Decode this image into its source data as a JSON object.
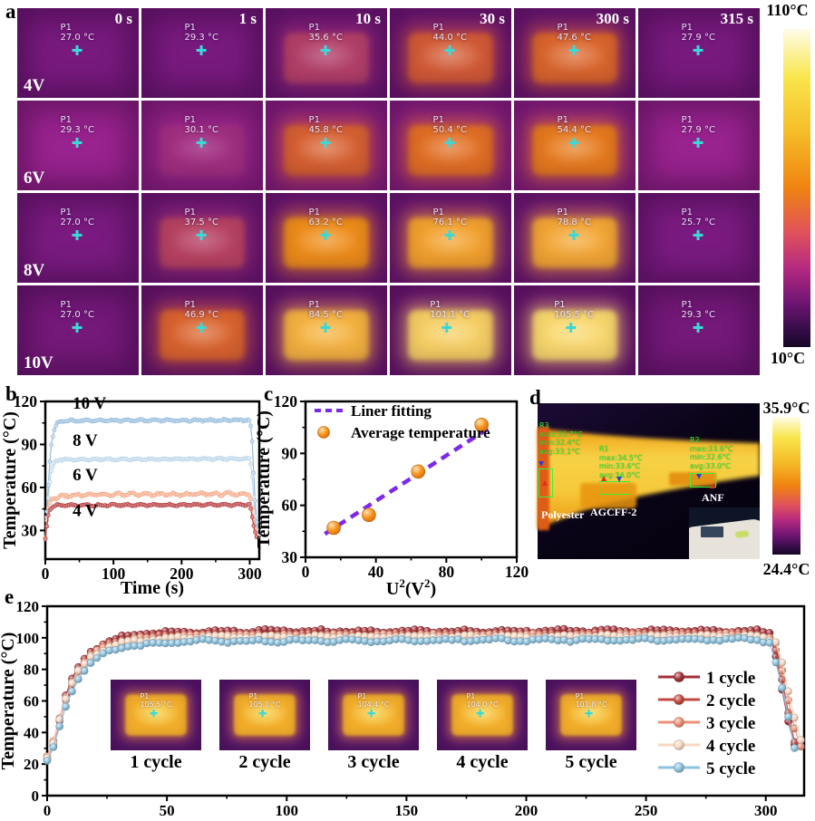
{
  "colors": {
    "crosshair": "#3bd8d6",
    "annotation_green": "#38f23c",
    "thermal_gradient": [
      "#fefce8 0%",
      "#f9e64d 15%",
      "#f5bb28 33%",
      "#ef8311 50%",
      "#e0525b 64%",
      "#b62a80 75%",
      "#6f1573 86%",
      "#2c0b40 96%",
      "#170724 100%"
    ],
    "cell_row_bg": [
      "#78197e",
      "#98228e",
      "#7a1a80",
      "#741879"
    ],
    "fit_purple": "#7d2ae8",
    "sphere_orange": "#f79421"
  },
  "panel_a": {
    "label": "a",
    "time_labels": [
      "0 s",
      "1 s",
      "10 s",
      "30 s",
      "300 s",
      "315 s"
    ],
    "rows": [
      {
        "voltage": "4V",
        "temps": [
          27.0,
          29.3,
          35.6,
          44.0,
          47.6,
          27.9
        ]
      },
      {
        "voltage": "6V",
        "temps": [
          29.3,
          30.1,
          45.8,
          50.4,
          54.4,
          27.9
        ]
      },
      {
        "voltage": "8V",
        "temps": [
          27.0,
          37.5,
          63.2,
          76.1,
          78.8,
          25.7
        ]
      },
      {
        "voltage": "10V",
        "temps": [
          27.0,
          46.9,
          84.5,
          101.1,
          105.5,
          29.3
        ]
      }
    ],
    "point_label": "P1",
    "temp_suffix": " °C",
    "colorbar_top": "110°C",
    "colorbar_bottom": "10°C"
  },
  "panel_d": {
    "label": "d",
    "regions": [
      {
        "id": "R3",
        "lines": [
          "max:33.7°C",
          "min:32.4°C",
          "avg:33.1°C"
        ]
      },
      {
        "id": "R1",
        "lines": [
          "max:34.5°C",
          "min:33.6°C",
          "avg:34.0°C"
        ]
      },
      {
        "id": "R2",
        "lines": [
          "max:33.6°C",
          "min:32.6°C",
          "avg:33.0°C"
        ]
      }
    ],
    "material_labels": [
      "Polyester",
      "AGCFF-2",
      "ANF"
    ],
    "colorbar_top": "35.9°C",
    "colorbar_bottom": "24.4°C"
  },
  "panel_e": {
    "label": "e",
    "insets": [
      {
        "p1": "P1",
        "temp": "105.5 °C",
        "label": "1 cycle"
      },
      {
        "p1": "P1",
        "temp": "105.1 °C",
        "label": "2 cycle"
      },
      {
        "p1": "P1",
        "temp": "104.4 °C",
        "label": "3 cycle"
      },
      {
        "p1": "P1",
        "temp": "104.0 °C",
        "label": "4 cycle"
      },
      {
        "p1": "P1",
        "temp": "101.8 °C",
        "label": "5 cycle"
      }
    ]
  },
  "chart_data": [
    {
      "id": "b",
      "panel_label": "b",
      "type": "line",
      "xlabel": "Time (s)",
      "ylabel": "Temperature (°C)",
      "xlim": [
        0,
        314
      ],
      "ylim": [
        10,
        120
      ],
      "grid": false,
      "xticks": [
        0,
        100,
        200,
        300
      ],
      "xminorticks": [
        50,
        150,
        250
      ],
      "yticks": [
        30,
        60,
        90,
        120
      ],
      "yminorticks": [
        45,
        75,
        105
      ],
      "series": [
        {
          "name": "10 V",
          "color": "#8cb4d8",
          "fill": "#cfe2f1",
          "plateau": 106.5,
          "noise": 0.9,
          "keypoints": [
            [
              0,
              24
            ],
            [
              3,
              50
            ],
            [
              6,
              75
            ],
            [
              9,
              91
            ],
            [
              13,
              100
            ],
            [
              18,
              105
            ],
            [
              28,
              106.5
            ],
            [
              300,
              107
            ],
            [
              303,
              98
            ],
            [
              306,
              68
            ],
            [
              309,
              42
            ],
            [
              312,
              27
            ],
            [
              314,
              25
            ]
          ]
        },
        {
          "name": "8 V",
          "color": "#b3d1e8",
          "fill": "#e2eef7",
          "plateau": 79.5,
          "noise": 0.9,
          "keypoints": [
            [
              0,
              24
            ],
            [
              3,
              45
            ],
            [
              6,
              62
            ],
            [
              9,
              72
            ],
            [
              13,
              77
            ],
            [
              20,
              79.5
            ],
            [
              300,
              80
            ],
            [
              303,
              72
            ],
            [
              306,
              52
            ],
            [
              309,
              34
            ],
            [
              312,
              26
            ],
            [
              314,
              25
            ]
          ]
        },
        {
          "name": "6 V",
          "color": "#f2a283",
          "fill": "#fad4bd",
          "plateau": 55,
          "noise": 1.4,
          "keypoints": [
            [
              0,
              25
            ],
            [
              2,
              36
            ],
            [
              4,
              45
            ],
            [
              7,
              50
            ],
            [
              11,
              52.5
            ],
            [
              25,
              54
            ],
            [
              60,
              55
            ],
            [
              300,
              55.5
            ],
            [
              303,
              48
            ],
            [
              306,
              37
            ],
            [
              309,
              28
            ],
            [
              312,
              24
            ]
          ]
        },
        {
          "name": "4 V",
          "color": "#b23a3c",
          "fill": "#dc9090",
          "plateau": 47.5,
          "noise": 0.9,
          "keypoints": [
            [
              0,
              24
            ],
            [
              2,
              32
            ],
            [
              4,
              40
            ],
            [
              7,
              45
            ],
            [
              11,
              47
            ],
            [
              20,
              47.5
            ],
            [
              300,
              48
            ],
            [
              302,
              44
            ],
            [
              304,
              38
            ],
            [
              307,
              30
            ],
            [
              310,
              26
            ],
            [
              312,
              25
            ]
          ]
        }
      ]
    },
    {
      "id": "c",
      "panel_label": "c",
      "type": "scatter",
      "xlabel_parts": [
        "U",
        "2",
        "(V",
        "2",
        ")"
      ],
      "ylabel": "Temperature (°C)",
      "xlim": [
        0,
        120
      ],
      "ylim": [
        30,
        120
      ],
      "grid": false,
      "xticks": [
        0,
        40,
        80,
        120
      ],
      "xminorticks": [
        20,
        60,
        100
      ],
      "yticks": [
        30,
        60,
        90,
        120
      ],
      "yminorticks": [
        45,
        75,
        105
      ],
      "legend": [
        {
          "label": "Liner fitting",
          "type": "dashed-line",
          "color": "#7d2ae8"
        },
        {
          "label": "Average temperature",
          "type": "sphere",
          "color": "#f79421"
        }
      ],
      "points": [
        [
          16,
          47
        ],
        [
          36,
          54.5
        ],
        [
          64,
          79.5
        ],
        [
          100,
          106.5
        ]
      ],
      "fit_line": {
        "x1": 11,
        "y1": 43.5,
        "x2": 104,
        "y2": 104.5,
        "color": "#7d2ae8"
      }
    },
    {
      "id": "e",
      "panel_label": "e",
      "type": "line",
      "xlabel": "",
      "ylabel": "Temperature (°C)",
      "xlim": [
        0,
        316
      ],
      "ylim": [
        0,
        120
      ],
      "grid": false,
      "legend_position": "right-inside",
      "xticks": [
        0,
        50,
        100,
        150,
        200,
        250,
        300
      ],
      "xminorticks": [
        25,
        75,
        125,
        175,
        225,
        275
      ],
      "yticks": [
        0,
        20,
        40,
        60,
        80,
        100,
        120
      ],
      "yminorticks": [
        10,
        30,
        50,
        70,
        90,
        110
      ],
      "series": [
        {
          "name": "1 cycle",
          "color": "#a33139",
          "plateau": 104.5,
          "noise": 1.3,
          "keypoints": [
            [
              0,
              23
            ],
            [
              2,
              28
            ],
            [
              4,
              40
            ],
            [
              7,
              60
            ],
            [
              10,
              73
            ],
            [
              14,
              84
            ],
            [
              18,
              91
            ],
            [
              24,
              97
            ],
            [
              32,
              101
            ],
            [
              45,
              103.5
            ],
            [
              90,
              104.5
            ],
            [
              150,
              104
            ],
            [
              230,
              104.5
            ],
            [
              296,
              104.5
            ],
            [
              302,
              103
            ],
            [
              305,
              83
            ],
            [
              308,
              57
            ],
            [
              311,
              36
            ],
            [
              313,
              28
            ]
          ]
        },
        {
          "name": "2 cycle",
          "color": "#c24a42",
          "plateau": 103,
          "noise": 1.2,
          "keypoints": [
            [
              0,
              24
            ],
            [
              3,
              34
            ],
            [
              6,
              52
            ],
            [
              9,
              66
            ],
            [
              13,
              79
            ],
            [
              17,
              88
            ],
            [
              23,
              95
            ],
            [
              32,
              99
            ],
            [
              50,
              102
            ],
            [
              295,
              103
            ],
            [
              303,
              100
            ],
            [
              306,
              80
            ],
            [
              309,
              55
            ],
            [
              312,
              34
            ],
            [
              314,
              27
            ]
          ]
        },
        {
          "name": "3 cycle",
          "color": "#e9917a",
          "plateau": 102,
          "noise": 1.2,
          "keypoints": [
            [
              0,
              25
            ],
            [
              3,
              36
            ],
            [
              6,
              54
            ],
            [
              9,
              68
            ],
            [
              13,
              80
            ],
            [
              18,
              89
            ],
            [
              25,
              95
            ],
            [
              35,
              99
            ],
            [
              60,
              101.5
            ],
            [
              296,
              102
            ],
            [
              304,
              98
            ],
            [
              307,
              78
            ],
            [
              310,
              56
            ],
            [
              313,
              36
            ],
            [
              316,
              27
            ]
          ]
        },
        {
          "name": "4 cycle",
          "color": "#f6d8c2",
          "plateau": 101,
          "noise": 1.2,
          "keypoints": [
            [
              0,
              24
            ],
            [
              3,
              35
            ],
            [
              6,
              53
            ],
            [
              9,
              67
            ],
            [
              13,
              79
            ],
            [
              18,
              88
            ],
            [
              25,
              94
            ],
            [
              35,
              98
            ],
            [
              60,
              100.5
            ],
            [
              297,
              101
            ],
            [
              305,
              97
            ],
            [
              308,
              76
            ],
            [
              311,
              55
            ],
            [
              314,
              38
            ],
            [
              316,
              28
            ]
          ]
        },
        {
          "name": "5 cycle",
          "color": "#8fc2dd",
          "plateau": 99,
          "noise": 1.3,
          "keypoints": [
            [
              0,
              22
            ],
            [
              3,
              32
            ],
            [
              6,
              48
            ],
            [
              9,
              62
            ],
            [
              13,
              74
            ],
            [
              18,
              84
            ],
            [
              25,
              91
            ],
            [
              35,
              95
            ],
            [
              60,
              98
            ],
            [
              295,
              99
            ],
            [
              302,
              97
            ],
            [
              305,
              80
            ],
            [
              308,
              60
            ],
            [
              311,
              38
            ],
            [
              313,
              22
            ]
          ]
        }
      ]
    }
  ]
}
